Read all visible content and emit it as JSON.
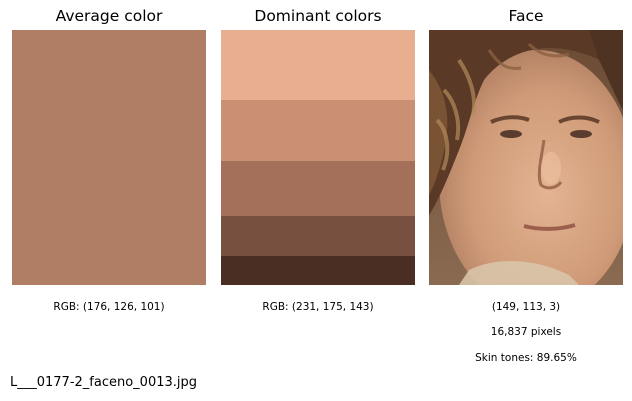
{
  "panels": {
    "average": {
      "title": "Average color",
      "color": "#b07e65",
      "caption": "RGB: (176, 126, 101)"
    },
    "dominant": {
      "title": "Dominant colors",
      "caption": "RGB: (231, 175, 143)",
      "bands": [
        {
          "color": "#e7af8f",
          "share": 0.275
        },
        {
          "color": "#c99073",
          "share": 0.24
        },
        {
          "color": "#a5705a",
          "share": 0.215
        },
        {
          "color": "#77503f",
          "share": 0.155
        },
        {
          "color": "#4a2e24",
          "share": 0.115
        }
      ]
    },
    "face": {
      "title": "Face",
      "caption_rgb": "(149, 113, 3)",
      "caption_pixels": "16,837 pixels",
      "caption_skin": "Skin tones: 89.65%"
    }
  },
  "filename": "L___0177-2_faceno_0013.jpg"
}
